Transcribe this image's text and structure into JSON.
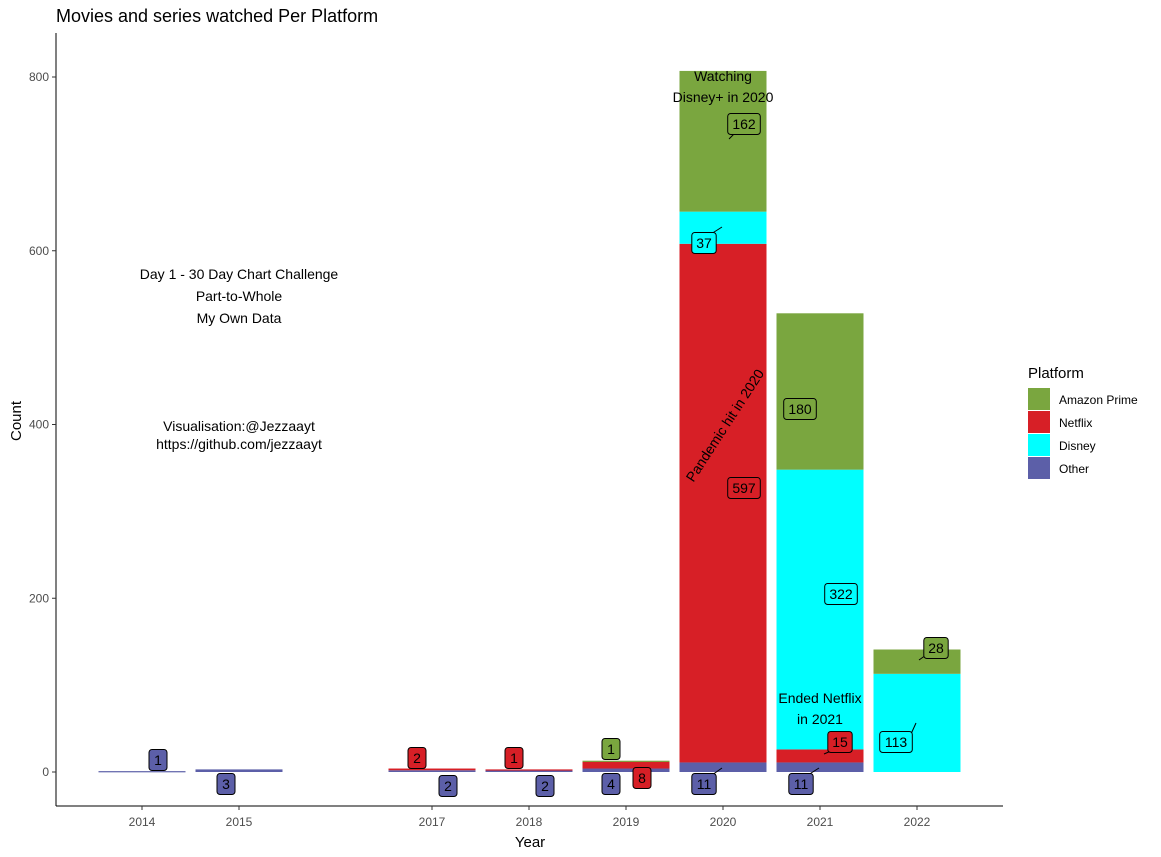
{
  "chart_data": {
    "type": "bar",
    "title": "Movies and series watched Per Platform",
    "xlabel": "Year",
    "ylabel": "Count",
    "ylim": [
      -40,
      850
    ],
    "yticks": [
      0,
      200,
      400,
      600,
      800
    ],
    "grid": false,
    "legend_position": "right",
    "legend_title": "Platform",
    "categories": [
      "2014",
      "2015",
      "2017",
      "2018",
      "2019",
      "2020",
      "2021",
      "2022"
    ],
    "series": [
      {
        "name": "Other",
        "color": "#5c5fa8",
        "values": [
          1,
          3,
          2,
          2,
          4,
          11,
          11,
          0
        ]
      },
      {
        "name": "Netflix",
        "color": "#d71f26",
        "values": [
          0,
          0,
          2,
          1,
          8,
          597,
          15,
          0
        ]
      },
      {
        "name": "Disney",
        "color": "#00ffff",
        "values": [
          0,
          0,
          0,
          0,
          0,
          37,
          322,
          113
        ]
      },
      {
        "name": "Amazon Prime",
        "color": "#7aa63f",
        "values": [
          0,
          0,
          0,
          0,
          1,
          162,
          180,
          28
        ]
      }
    ],
    "legend_order": [
      "Amazon Prime",
      "Netflix",
      "Disney",
      "Other"
    ],
    "annotations": {
      "challenge": [
        "Day 1 - 30 Day Chart Challenge",
        "Part-to-Whole",
        "My Own Data"
      ],
      "credit": [
        "Visualisation:@Jezzaayt",
        "https://github.com/jezzaayt"
      ],
      "disney": [
        "Watching",
        "Disney+ in 2020"
      ],
      "pandemic": "Pandemic hit in 2020",
      "netflix_end": [
        "Ended Netflix",
        "in 2021"
      ]
    },
    "value_labels": [
      {
        "year": "2014",
        "series": "Other",
        "text": "1"
      },
      {
        "year": "2015",
        "series": "Other",
        "text": "3"
      },
      {
        "year": "2017",
        "series": "Netflix",
        "text": "2"
      },
      {
        "year": "2017",
        "series": "Other",
        "text": "2"
      },
      {
        "year": "2018",
        "series": "Netflix",
        "text": "1"
      },
      {
        "year": "2018",
        "series": "Other",
        "text": "2"
      },
      {
        "year": "2019",
        "series": "Amazon Prime",
        "text": "1"
      },
      {
        "year": "2019",
        "series": "Netflix",
        "text": "8"
      },
      {
        "year": "2019",
        "series": "Other",
        "text": "4"
      },
      {
        "year": "2020",
        "series": "Amazon Prime",
        "text": "162"
      },
      {
        "year": "2020",
        "series": "Disney",
        "text": "37"
      },
      {
        "year": "2020",
        "series": "Netflix",
        "text": "597"
      },
      {
        "year": "2020",
        "series": "Other",
        "text": "11"
      },
      {
        "year": "2021",
        "series": "Amazon Prime",
        "text": "180"
      },
      {
        "year": "2021",
        "series": "Disney",
        "text": "322"
      },
      {
        "year": "2021",
        "series": "Netflix",
        "text": "15"
      },
      {
        "year": "2021",
        "series": "Other",
        "text": "11"
      },
      {
        "year": "2022",
        "series": "Amazon Prime",
        "text": "28"
      },
      {
        "year": "2022",
        "series": "Disney",
        "text": "113"
      }
    ]
  }
}
